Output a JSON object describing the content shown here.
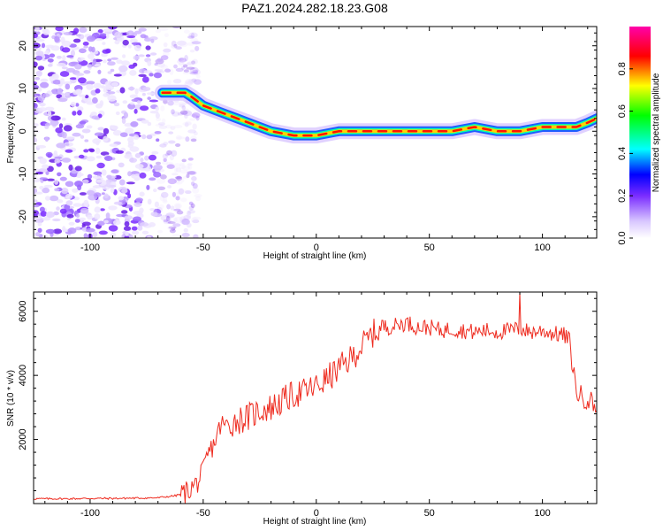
{
  "title": "PAZ1.2024.282.18.23.G08",
  "chart_data": [
    {
      "type": "heatmap",
      "xlabel": "Height of straight line (km)",
      "ylabel": "Frequency (Hz)",
      "xlim": [
        -125,
        124
      ],
      "ylim": [
        -25,
        24.5
      ],
      "xticks": [
        -100,
        -50,
        0,
        50,
        100
      ],
      "yticks": [
        20,
        10,
        0,
        -10,
        -20
      ],
      "colorbar": {
        "label": "Normalized spectral amplitude",
        "range": [
          0,
          1
        ],
        "ticks": [
          "0.0",
          "0.2",
          "0.4",
          "0.6",
          "0.8"
        ],
        "colors": [
          "#ffffff",
          "#d8c6ff",
          "#7a2cff",
          "#0000ff",
          "#00ffff",
          "#00ff00",
          "#ffff00",
          "#ff0000",
          "#ff00aa"
        ]
      },
      "ridge": {
        "x": [
          -68,
          -58,
          -55,
          -50,
          -45,
          -40,
          -35,
          -30,
          -25,
          -20,
          -15,
          -10,
          -5,
          0,
          10,
          20,
          30,
          40,
          50,
          60,
          70,
          80,
          90,
          100,
          110,
          115,
          120,
          124
        ],
        "y": [
          9,
          9,
          8,
          6,
          5,
          4,
          3,
          2,
          1,
          0,
          -0.5,
          -1,
          -1,
          -1,
          0,
          0,
          0,
          0,
          0,
          0,
          1,
          0,
          0,
          1,
          1,
          1,
          2,
          3
        ]
      },
      "noise_region_x": [
        -125,
        -62
      ]
    },
    {
      "type": "line",
      "xlabel": "Height of straight line (km)",
      "ylabel": "SNR (10 * v/v)",
      "xlim": [
        -125,
        124
      ],
      "ylim": [
        0,
        6600
      ],
      "xticks": [
        -100,
        -50,
        0,
        50,
        100
      ],
      "yticks": [
        6000,
        4000,
        2000
      ],
      "color": "#ee2a1e",
      "x": [
        -125,
        -110,
        -100,
        -90,
        -80,
        -70,
        -62,
        -58,
        -55,
        -52,
        -50,
        -48,
        -45,
        -42,
        -40,
        -35,
        -30,
        -25,
        -20,
        -15,
        -10,
        -5,
        0,
        5,
        10,
        15,
        20,
        25,
        30,
        35,
        40,
        45,
        50,
        55,
        60,
        65,
        70,
        75,
        80,
        85,
        90,
        95,
        100,
        105,
        110,
        112,
        115,
        118,
        120,
        124
      ],
      "y": [
        150,
        150,
        160,
        160,
        170,
        180,
        250,
        350,
        500,
        700,
        1000,
        1500,
        1900,
        2500,
        2400,
        2600,
        2700,
        2900,
        3000,
        3200,
        3400,
        3500,
        3650,
        3900,
        4200,
        4500,
        4900,
        5300,
        5500,
        5550,
        5650,
        5500,
        5500,
        5400,
        5450,
        5400,
        5350,
        5400,
        5350,
        5400,
        5450,
        5350,
        5400,
        5300,
        5250,
        5000,
        3500,
        3300,
        3300,
        3000
      ]
    }
  ]
}
